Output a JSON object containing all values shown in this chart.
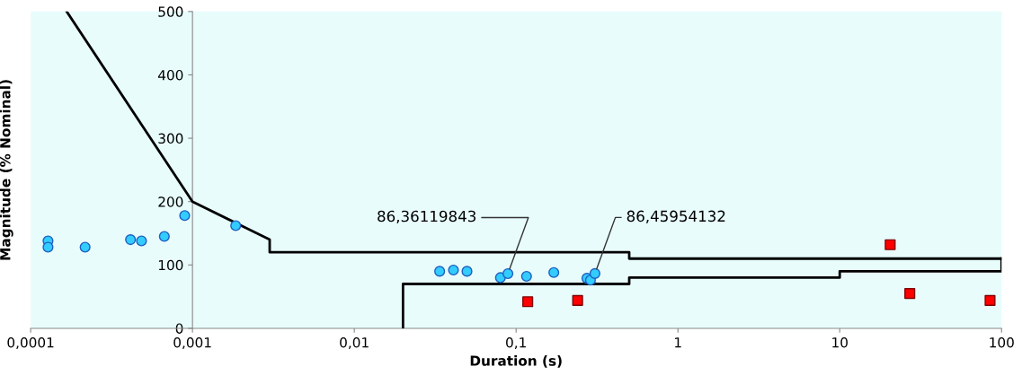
{
  "chart_data": {
    "type": "scatter",
    "xlabel": "Duration (s)",
    "ylabel": "Magnitude (% Nominal)",
    "log": "x",
    "xlim": [
      0.0001,
      100
    ],
    "ylim": [
      0,
      500
    ],
    "xticks": [
      {
        "value": 0.0001,
        "label": "0,0001"
      },
      {
        "value": 0.001,
        "label": "0,001"
      },
      {
        "value": 0.01,
        "label": "0,01"
      },
      {
        "value": 0.1,
        "label": "0,1"
      },
      {
        "value": 1,
        "label": "1"
      },
      {
        "value": 10,
        "label": "10"
      },
      {
        "value": 100,
        "label": "100"
      }
    ],
    "yticks": [
      0,
      100,
      200,
      300,
      400,
      500
    ],
    "grid": false,
    "legend": false,
    "series": [
      {
        "type": "line",
        "color": "#000000",
        "marker": "none",
        "line_style": "solid",
        "x": [
          0.000167,
          0.001,
          0.003,
          0.003,
          0.5,
          0.5,
          100
        ],
        "values": [
          500,
          200,
          140,
          120,
          120,
          110,
          110
        ]
      },
      {
        "type": "line",
        "color": "#000000",
        "marker": "none",
        "line_style": "solid",
        "x": [
          0.02,
          0.02,
          0.5,
          0.5,
          10,
          10,
          100,
          100
        ],
        "values": [
          0,
          70,
          70,
          80,
          80,
          90,
          90,
          110
        ]
      },
      {
        "color": "#33ccff",
        "marker": "circle",
        "x": [
          0.000128,
          0.000128,
          0.000217,
          0.000414,
          0.000484,
          0.00067,
          0.000895,
          0.00185,
          0.0337,
          0.041,
          0.0497,
          0.08,
          0.089,
          0.116,
          0.171,
          0.274,
          0.288,
          0.307
        ],
        "values": [
          138,
          128,
          128,
          140,
          138,
          145,
          178,
          162,
          90,
          92,
          90,
          80,
          86.36119843,
          82,
          88,
          79,
          76,
          86.45954132
        ],
        "value_labels": [
          null,
          null,
          null,
          null,
          null,
          null,
          null,
          null,
          null,
          null,
          null,
          null,
          "86,36119843",
          null,
          null,
          null,
          null,
          "86,45954132"
        ]
      },
      {
        "color": "#ff0000",
        "marker": "square",
        "x": [
          0.118,
          0.24,
          20.5,
          27.1,
          84.9
        ],
        "values": [
          42,
          44,
          132,
          55,
          44
        ]
      }
    ]
  }
}
